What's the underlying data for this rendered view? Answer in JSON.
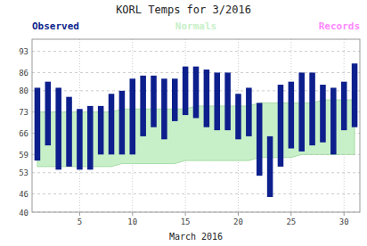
{
  "chart_data": {
    "type": "bar",
    "title": "KORL Temps for 3/2016",
    "x_label": "March 2016",
    "x": [
      1,
      2,
      3,
      4,
      5,
      6,
      7,
      8,
      9,
      10,
      11,
      12,
      13,
      14,
      15,
      16,
      17,
      18,
      19,
      20,
      21,
      22,
      23,
      24,
      25,
      26,
      27,
      28,
      29,
      30,
      31
    ],
    "series": [
      {
        "name": "Observed",
        "type": "bar",
        "color": "#0d1f8c",
        "values": [
          81,
          83,
          81,
          78,
          74,
          75,
          75,
          79,
          80,
          84,
          85,
          85,
          84,
          84,
          88,
          88,
          87,
          86,
          86,
          79,
          81,
          76,
          65,
          82,
          83,
          86,
          86,
          82,
          81,
          83,
          89
        ],
        "low": [
          57,
          62,
          54,
          55,
          54,
          54,
          59,
          59,
          59,
          59,
          65,
          68,
          64,
          70,
          72,
          71,
          68,
          67,
          67,
          64,
          65,
          52,
          45,
          55,
          61,
          60,
          62,
          63,
          59,
          67,
          68
        ]
      },
      {
        "name": "Normals",
        "type": "area",
        "color": "#c8f0c8",
        "values": [
          73,
          73,
          73,
          73,
          73,
          73,
          73,
          73,
          74,
          74,
          74,
          74,
          74,
          74,
          74,
          75,
          75,
          75,
          75,
          75,
          75,
          76,
          76,
          76,
          76,
          76,
          76,
          77,
          77,
          77,
          77
        ],
        "low": [
          55,
          55,
          55,
          55,
          55,
          55,
          55,
          55,
          56,
          56,
          56,
          56,
          56,
          56,
          57,
          57,
          57,
          57,
          57,
          57,
          57,
          58,
          58,
          58,
          58,
          59,
          59,
          59,
          59,
          59,
          59
        ]
      }
    ],
    "annotations": [
      {
        "text": "Records",
        "color": "#ff88ff"
      }
    ],
    "xlim": [
      0.5,
      31.5
    ],
    "xticks": [
      5,
      10,
      15,
      20,
      25,
      30
    ],
    "ylim": [
      40,
      97
    ],
    "yticks": [
      40,
      46,
      53,
      59,
      66,
      73,
      80,
      86,
      93
    ],
    "grid": true,
    "legend": "top"
  }
}
